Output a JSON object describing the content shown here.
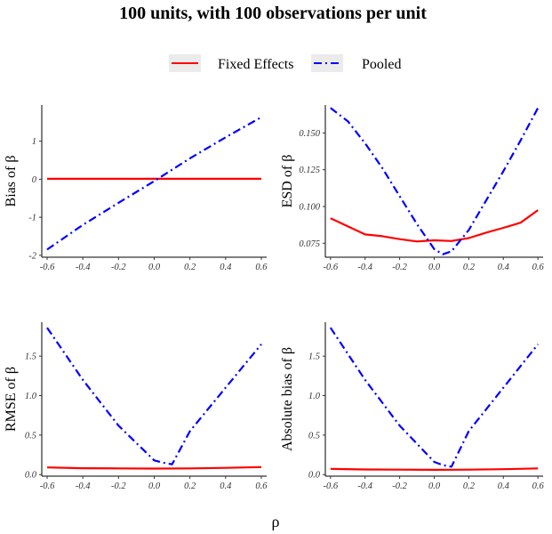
{
  "figure": {
    "title": "100 units, with 100 observations per unit",
    "shared_xlabel": "ρ",
    "legend": [
      {
        "label": "Fixed Effects",
        "color": "#ff0000",
        "style": "solid"
      },
      {
        "label": "Pooled",
        "color": "#0000ff",
        "style": "dashdot"
      }
    ]
  },
  "chart_data": [
    {
      "type": "line",
      "id": "bias",
      "ylabel": "Bias of β",
      "xlim": [
        -0.63,
        0.63
      ],
      "ylim": [
        -2.05,
        1.95
      ],
      "xticks": [
        -0.6,
        -0.4,
        -0.2,
        0.0,
        0.2,
        0.4,
        0.6
      ],
      "xtick_labels": [
        "-0.6",
        "-0.4",
        "-0.2",
        "0.0",
        "0.2",
        "0.4",
        "0.6"
      ],
      "yticks": [
        -2,
        -1,
        0,
        1
      ],
      "ytick_labels": [
        "-2",
        "-1",
        "0",
        "1"
      ],
      "series": [
        {
          "name": "Fixed Effects",
          "x": [
            -0.6,
            -0.4,
            -0.2,
            0.0,
            0.2,
            0.4,
            0.6
          ],
          "y": [
            0.01,
            0.01,
            0.01,
            0.01,
            0.01,
            0.01,
            0.01
          ]
        },
        {
          "name": "Pooled",
          "x": [
            -0.6,
            -0.4,
            -0.2,
            0.0,
            0.2,
            0.4,
            0.6
          ],
          "y": [
            -1.85,
            -1.2,
            -0.62,
            -0.05,
            0.55,
            1.1,
            1.63
          ]
        }
      ]
    },
    {
      "type": "line",
      "id": "esd",
      "ylabel": "ESD of β",
      "xlim": [
        -0.63,
        0.63
      ],
      "ylim": [
        0.0655,
        0.169
      ],
      "xticks": [
        -0.6,
        -0.4,
        -0.2,
        0.0,
        0.2,
        0.4,
        0.6
      ],
      "xtick_labels": [
        "-0.6",
        "-0.4",
        "-0.2",
        "0.0",
        "0.2",
        "0.4",
        "0.6"
      ],
      "yticks": [
        0.075,
        0.1,
        0.125,
        0.15
      ],
      "ytick_labels": [
        "0.075",
        "0.100",
        "0.125",
        "0.150"
      ],
      "series": [
        {
          "name": "Fixed Effects",
          "x": [
            -0.6,
            -0.4,
            -0.3,
            -0.2,
            -0.1,
            0.0,
            0.1,
            0.2,
            0.3,
            0.4,
            0.5,
            0.6
          ],
          "y": [
            0.092,
            0.081,
            0.0798,
            0.0778,
            0.0762,
            0.077,
            0.0765,
            0.0785,
            0.0822,
            0.0855,
            0.089,
            0.0975
          ]
        },
        {
          "name": "Pooled",
          "x": [
            -0.6,
            -0.5,
            -0.4,
            -0.3,
            -0.2,
            -0.1,
            0.0,
            0.05,
            0.1,
            0.2,
            0.3,
            0.4,
            0.5,
            0.6
          ],
          "y": [
            0.167,
            0.158,
            0.143,
            0.126,
            0.107,
            0.088,
            0.071,
            0.0675,
            0.0695,
            0.084,
            0.104,
            0.124,
            0.145,
            0.167
          ]
        }
      ]
    },
    {
      "type": "line",
      "id": "rmse",
      "ylabel": "RMSE of β",
      "xlim": [
        -0.63,
        0.63
      ],
      "ylim": [
        -0.02,
        1.93
      ],
      "xticks": [
        -0.6,
        -0.4,
        -0.2,
        0.0,
        0.2,
        0.4,
        0.6
      ],
      "xtick_labels": [
        "-0.6",
        "-0.4",
        "-0.2",
        "0.0",
        "0.2",
        "0.4",
        "0.6"
      ],
      "yticks": [
        0.0,
        0.5,
        1.0,
        1.5
      ],
      "ytick_labels": [
        "0.0",
        "0.5",
        "1.0",
        "1.5"
      ],
      "series": [
        {
          "name": "Fixed Effects",
          "x": [
            -0.6,
            -0.4,
            -0.2,
            0.0,
            0.2,
            0.4,
            0.6
          ],
          "y": [
            0.09,
            0.08,
            0.078,
            0.076,
            0.078,
            0.085,
            0.095
          ]
        },
        {
          "name": "Pooled",
          "x": [
            -0.6,
            -0.4,
            -0.2,
            0.0,
            0.05,
            0.1,
            0.2,
            0.4,
            0.6
          ],
          "y": [
            1.86,
            1.2,
            0.62,
            0.18,
            0.15,
            0.13,
            0.55,
            1.1,
            1.65
          ]
        }
      ]
    },
    {
      "type": "line",
      "id": "absbias",
      "ylabel": "Absolute bias of β",
      "xlim": [
        -0.63,
        0.63
      ],
      "ylim": [
        -0.02,
        1.93
      ],
      "xticks": [
        -0.6,
        -0.4,
        -0.2,
        0.0,
        0.2,
        0.4,
        0.6
      ],
      "xtick_labels": [
        "-0.6",
        "-0.4",
        "-0.2",
        "0.0",
        "0.2",
        "0.4",
        "0.6"
      ],
      "yticks": [
        0.0,
        0.5,
        1.0,
        1.5
      ],
      "ytick_labels": [
        "0.0",
        "0.5",
        "1.0",
        "1.5"
      ],
      "series": [
        {
          "name": "Fixed Effects",
          "x": [
            -0.6,
            -0.4,
            -0.2,
            0.0,
            0.2,
            0.4,
            0.6
          ],
          "y": [
            0.072,
            0.064,
            0.062,
            0.06,
            0.062,
            0.068,
            0.078
          ]
        },
        {
          "name": "Pooled",
          "x": [
            -0.6,
            -0.4,
            -0.2,
            0.0,
            0.05,
            0.1,
            0.2,
            0.4,
            0.6
          ],
          "y": [
            1.86,
            1.2,
            0.62,
            0.16,
            0.12,
            0.1,
            0.55,
            1.1,
            1.65
          ]
        }
      ]
    }
  ]
}
